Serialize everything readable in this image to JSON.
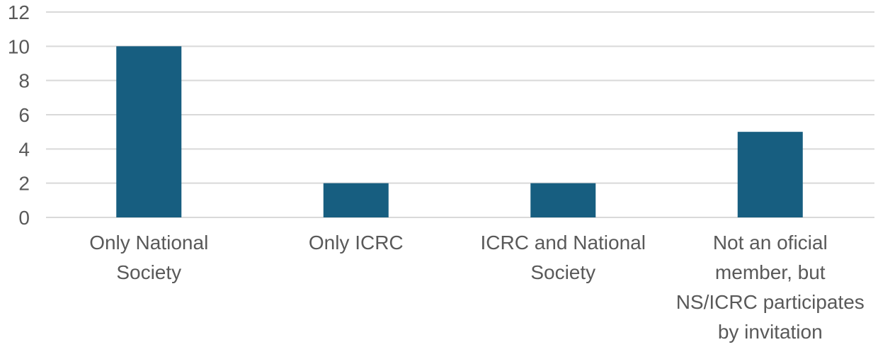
{
  "chart_data": {
    "type": "bar",
    "title": "",
    "xlabel": "",
    "ylabel": "",
    "categories": [
      [
        "Only National",
        "Society"
      ],
      [
        "Only ICRC"
      ],
      [
        "ICRC and National",
        "Society"
      ],
      [
        "Not an oficial",
        "member, but",
        "NS/ICRC participates",
        "by invitation"
      ]
    ],
    "values": [
      10,
      2,
      2,
      5
    ],
    "ylim": [
      0,
      12
    ],
    "yticks": [
      0,
      2,
      4,
      6,
      8,
      10,
      12
    ],
    "grid": true,
    "bar_color": "#175e80",
    "grid_color": "#d9d9d9",
    "text_color": "#595959"
  }
}
